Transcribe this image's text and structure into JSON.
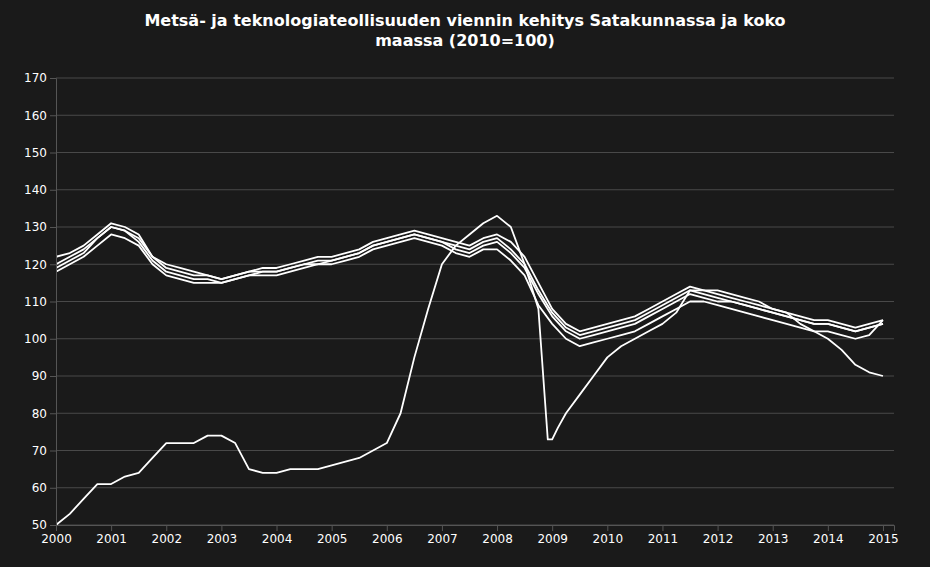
{
  "chart_data": {
    "type": "line",
    "title": "Metsä- ja teknologiateollisuuden viennin kehitys Satakunnassa ja koko\nmaassa (2010=100)",
    "xlim": [
      2000.0,
      2015.2
    ],
    "xticks": [
      2000,
      2001,
      2002,
      2003,
      2004,
      2005,
      2006,
      2007,
      2008,
      2009,
      2010,
      2011,
      2012,
      2013,
      2014,
      2015
    ],
    "ylim": [
      50,
      170
    ],
    "yticks": [
      50,
      60,
      70,
      80,
      90,
      100,
      110,
      120,
      130,
      140,
      150,
      160,
      170
    ],
    "grid": true,
    "series": [
      {
        "color": "#ffffff",
        "x": [
          2000.0,
          2000.25,
          2000.5,
          2000.75,
          2001.0,
          2001.25,
          2001.5,
          2001.75,
          2002.0,
          2002.25,
          2002.5,
          2002.75,
          2003.0,
          2003.25,
          2003.5,
          2003.75,
          2004.0,
          2004.25,
          2004.5,
          2004.75,
          2005.0,
          2005.25,
          2005.5,
          2005.75,
          2006.0,
          2006.25,
          2006.5,
          2006.75,
          2007.0,
          2007.25,
          2007.5,
          2007.75,
          2008.0,
          2008.25,
          2008.5,
          2008.75,
          2009.0,
          2009.25,
          2009.5,
          2009.75,
          2010.0,
          2010.25,
          2010.5,
          2010.75,
          2011.0,
          2011.25,
          2011.5,
          2011.75,
          2012.0,
          2012.25,
          2012.5,
          2012.75,
          2013.0,
          2013.25,
          2013.5,
          2013.75,
          2014.0,
          2014.25,
          2014.5,
          2014.75,
          2015.0
        ],
        "values": [
          122,
          123,
          125,
          128,
          131,
          130,
          128,
          122,
          120,
          119,
          118,
          117,
          116,
          117,
          118,
          119,
          119,
          120,
          121,
          122,
          122,
          123,
          124,
          126,
          127,
          128,
          129,
          128,
          127,
          126,
          125,
          127,
          128,
          126,
          122,
          115,
          108,
          104,
          102,
          103,
          104,
          105,
          106,
          108,
          110,
          112,
          114,
          113,
          112,
          111,
          110,
          109,
          108,
          107,
          106,
          105,
          105,
          104,
          103,
          104,
          105
        ]
      },
      {
        "color": "#ffffff",
        "x": [
          2000.0,
          2000.25,
          2000.5,
          2000.75,
          2001.0,
          2001.25,
          2001.5,
          2001.75,
          2002.0,
          2002.25,
          2002.5,
          2002.75,
          2003.0,
          2003.25,
          2003.5,
          2003.75,
          2004.0,
          2004.25,
          2004.5,
          2004.75,
          2005.0,
          2005.25,
          2005.5,
          2005.75,
          2006.0,
          2006.25,
          2006.5,
          2006.75,
          2007.0,
          2007.25,
          2007.5,
          2007.75,
          2008.0,
          2008.25,
          2008.5,
          2008.75,
          2009.0,
          2009.25,
          2009.5,
          2009.75,
          2010.0,
          2010.25,
          2010.5,
          2010.75,
          2011.0,
          2011.25,
          2011.5,
          2011.75,
          2012.0,
          2012.25,
          2012.5,
          2012.75,
          2013.0,
          2013.25,
          2013.5,
          2013.75,
          2014.0,
          2014.25,
          2014.5,
          2014.75,
          2015.0
        ],
        "values": [
          119,
          121,
          123,
          127,
          130,
          129,
          126,
          121,
          118,
          117,
          116,
          116,
          115,
          116,
          117,
          118,
          118,
          119,
          120,
          120,
          121,
          122,
          123,
          125,
          126,
          127,
          128,
          127,
          126,
          124,
          123,
          125,
          126,
          123,
          119,
          112,
          106,
          102,
          100,
          101,
          102,
          103,
          104,
          106,
          108,
          110,
          112,
          111,
          110,
          110,
          109,
          108,
          107,
          106,
          105,
          104,
          104,
          103,
          102,
          103,
          104
        ]
      },
      {
        "color": "#ffffff",
        "x": [
          2000.0,
          2000.25,
          2000.5,
          2000.75,
          2001.0,
          2001.25,
          2001.5,
          2001.75,
          2002.0,
          2002.25,
          2002.5,
          2002.75,
          2003.0,
          2003.25,
          2003.5,
          2003.75,
          2004.0,
          2004.25,
          2004.5,
          2004.75,
          2005.0,
          2005.25,
          2005.5,
          2005.75,
          2006.0,
          2006.25,
          2006.5,
          2006.75,
          2007.0,
          2007.25,
          2007.5,
          2007.75,
          2008.0,
          2008.25,
          2008.5,
          2008.75,
          2009.0,
          2009.25,
          2009.5,
          2009.75,
          2010.0,
          2010.25,
          2010.5,
          2010.75,
          2011.0,
          2011.25,
          2011.5,
          2011.75,
          2012.0,
          2012.25,
          2012.5,
          2012.75,
          2013.0,
          2013.25,
          2013.5,
          2013.75,
          2014.0,
          2014.25,
          2014.5,
          2014.75,
          2015.0
        ],
        "values": [
          120,
          122,
          124,
          127,
          130,
          129,
          127,
          122,
          119,
          118,
          117,
          117,
          116,
          117,
          118,
          118,
          118,
          119,
          120,
          121,
          121,
          122,
          123,
          125,
          126,
          127,
          128,
          127,
          126,
          125,
          124,
          126,
          127,
          124,
          120,
          113,
          107,
          103,
          101,
          102,
          103,
          104,
          105,
          107,
          109,
          111,
          113,
          112,
          111,
          110,
          109,
          108,
          107,
          106,
          105,
          104,
          104,
          103,
          102,
          103,
          104
        ]
      },
      {
        "color": "#ffffff",
        "x": [
          2000.0,
          2000.25,
          2000.5,
          2000.75,
          2001.0,
          2001.25,
          2001.5,
          2001.75,
          2002.0,
          2002.25,
          2002.5,
          2002.75,
          2003.0,
          2003.25,
          2003.5,
          2003.75,
          2004.0,
          2004.25,
          2004.5,
          2004.75,
          2005.0,
          2005.25,
          2005.5,
          2005.75,
          2006.0,
          2006.25,
          2006.5,
          2006.75,
          2007.0,
          2007.25,
          2007.5,
          2007.75,
          2008.0,
          2008.25,
          2008.5,
          2008.75,
          2009.0,
          2009.25,
          2009.5,
          2009.75,
          2010.0,
          2010.25,
          2010.5,
          2010.75,
          2011.0,
          2011.25,
          2011.5,
          2011.75,
          2012.0,
          2012.25,
          2012.5,
          2012.75,
          2013.0,
          2013.25,
          2013.5,
          2013.75,
          2014.0,
          2014.25,
          2014.5,
          2014.75,
          2015.0
        ],
        "values": [
          118,
          120,
          122,
          125,
          128,
          127,
          125,
          120,
          117,
          116,
          115,
          115,
          115,
          116,
          117,
          117,
          117,
          118,
          119,
          120,
          120,
          121,
          122,
          124,
          125,
          126,
          127,
          126,
          125,
          123,
          122,
          124,
          124,
          121,
          117,
          109,
          104,
          100,
          98,
          99,
          100,
          101,
          102,
          104,
          106,
          108,
          110,
          110,
          109,
          108,
          107,
          106,
          105,
          104,
          103,
          102,
          102,
          101,
          100,
          101,
          105
        ]
      },
      {
        "color": "#ffffff",
        "x": [
          2000.0,
          2000.25,
          2000.5,
          2000.75,
          2001.0,
          2001.25,
          2001.5,
          2001.75,
          2002.0,
          2002.25,
          2002.5,
          2002.75,
          2003.0,
          2003.25,
          2003.5,
          2003.75,
          2004.0,
          2004.25,
          2004.5,
          2004.75,
          2005.0,
          2005.25,
          2005.5,
          2005.75,
          2006.0,
          2006.25,
          2006.5,
          2006.75,
          2007.0,
          2007.25,
          2007.5,
          2007.75,
          2008.0,
          2008.25,
          2008.5,
          2008.75,
          2008.92,
          2009.0,
          2009.1,
          2009.25,
          2009.5,
          2009.75,
          2010.0,
          2010.25,
          2010.5,
          2010.75,
          2011.0,
          2011.25,
          2011.5,
          2011.75,
          2012.0,
          2012.25,
          2012.5,
          2012.75,
          2013.0,
          2013.25,
          2013.5,
          2013.75,
          2014.0,
          2014.25,
          2014.5,
          2014.75,
          2015.0
        ],
        "values": [
          50,
          53,
          57,
          61,
          61,
          63,
          64,
          68,
          72,
          72,
          72,
          74,
          74,
          72,
          65,
          64,
          64,
          65,
          65,
          65,
          66,
          67,
          68,
          70,
          72,
          80,
          95,
          108,
          120,
          125,
          128,
          131,
          133,
          130,
          120,
          108,
          73,
          73,
          76,
          80,
          85,
          90,
          95,
          98,
          100,
          102,
          104,
          107,
          113,
          113,
          113,
          112,
          111,
          110,
          108,
          107,
          104,
          102,
          100,
          97,
          93,
          91,
          90
        ]
      }
    ]
  }
}
